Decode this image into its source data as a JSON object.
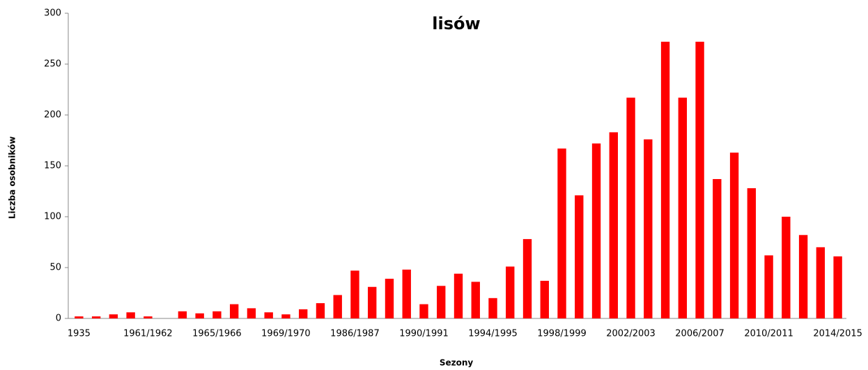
{
  "chart_data": {
    "type": "bar",
    "title": "lisów",
    "x_label": "Sezony",
    "y_label": "Liczba osobników",
    "categories": [
      "1935",
      null,
      null,
      null,
      "1961/1962",
      null,
      null,
      null,
      "1965/1966",
      null,
      null,
      null,
      "1969/1970",
      null,
      null,
      null,
      "1986/1987",
      null,
      null,
      null,
      "1990/1991",
      null,
      null,
      null,
      "1994/1995",
      null,
      null,
      null,
      "1998/1999",
      null,
      null,
      null,
      "2002/2003",
      null,
      null,
      null,
      "2006/2007",
      null,
      null,
      null,
      "2010/2011",
      null,
      null,
      null,
      "2014/2015"
    ],
    "values": [
      2,
      2,
      4,
      6,
      2,
      0,
      7,
      5,
      7,
      14,
      10,
      6,
      4,
      9,
      15,
      23,
      47,
      31,
      39,
      48,
      14,
      32,
      44,
      36,
      20,
      51,
      78,
      37,
      167,
      121,
      172,
      183,
      217,
      176,
      272,
      217,
      272,
      137,
      163,
      128,
      62,
      100,
      82,
      70,
      61
    ],
    "color": "#ff0000",
    "ylim": [
      0,
      300
    ],
    "yticks": [
      0,
      50,
      100,
      150,
      200,
      250,
      300
    ],
    "grid": false
  }
}
